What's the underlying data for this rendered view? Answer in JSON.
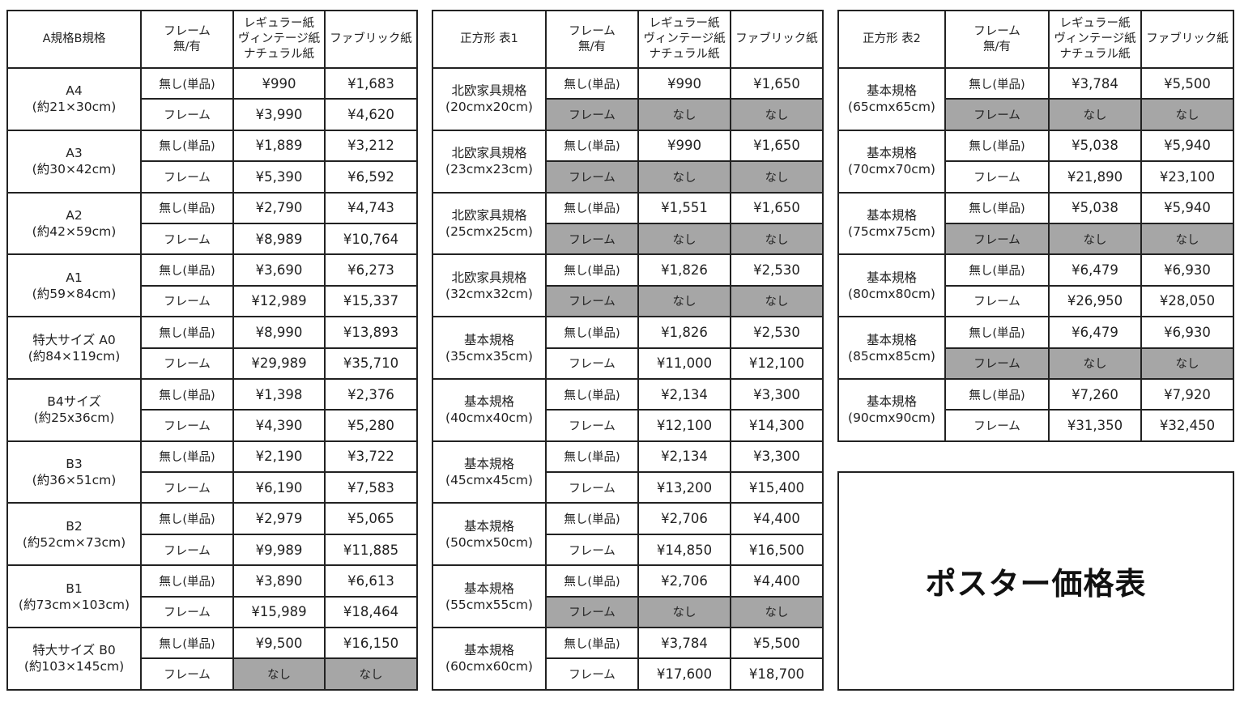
{
  "colors": {
    "border": "#222222",
    "unavailable": "#a6a6a6"
  },
  "title": "ポスター価格表",
  "labels": {
    "no_frame": "無し(単品)",
    "frame": "フレーム",
    "unavailable": "なし"
  },
  "tables": [
    {
      "headers": [
        "A規格B規格",
        [
          "フレーム",
          "無/有"
        ],
        [
          "レギュラー紙",
          "ヴィンテージ紙",
          "ナチュラル紙"
        ],
        "ファブリック紙"
      ],
      "frame_label_grey_when_unavailable": false,
      "groups": [
        {
          "name": "A4",
          "size": "(約21×30cm)",
          "rows": [
            [
              "¥990",
              "¥1,683"
            ],
            [
              "¥3,990",
              "¥4,620"
            ]
          ]
        },
        {
          "name": "A3",
          "size": "(約30×42cm)",
          "rows": [
            [
              "¥1,889",
              "¥3,212"
            ],
            [
              "¥5,390",
              "¥6,592"
            ]
          ]
        },
        {
          "name": "A2",
          "size": "(約42×59cm)",
          "rows": [
            [
              "¥2,790",
              "¥4,743"
            ],
            [
              "¥8,989",
              "¥10,764"
            ]
          ]
        },
        {
          "name": "A1",
          "size": "(約59×84cm)",
          "rows": [
            [
              "¥3,690",
              "¥6,273"
            ],
            [
              "¥12,989",
              "¥15,337"
            ]
          ]
        },
        {
          "name": "特大サイズ A0",
          "size": "(約84×119cm)",
          "rows": [
            [
              "¥8,990",
              "¥13,893"
            ],
            [
              "¥29,989",
              "¥35,710"
            ]
          ]
        },
        {
          "name": "B4サイズ",
          "size": "(約25x36cm)",
          "rows": [
            [
              "¥1,398",
              "¥2,376"
            ],
            [
              "¥4,390",
              "¥5,280"
            ]
          ]
        },
        {
          "name": "B3",
          "size": "(約36×51cm)",
          "rows": [
            [
              "¥2,190",
              "¥3,722"
            ],
            [
              "¥6,190",
              "¥7,583"
            ]
          ]
        },
        {
          "name": "B2",
          "size": "(約52cm×73cm)",
          "rows": [
            [
              "¥2,979",
              "¥5,065"
            ],
            [
              "¥9,989",
              "¥11,885"
            ]
          ]
        },
        {
          "name": "B1",
          "size": "(約73cm×103cm)",
          "rows": [
            [
              "¥3,890",
              "¥6,613"
            ],
            [
              "¥15,989",
              "¥18,464"
            ]
          ]
        },
        {
          "name": "特大サイズ B0",
          "size": "(約103×145cm)",
          "rows": [
            [
              "¥9,500",
              "¥16,150"
            ],
            null
          ]
        }
      ]
    },
    {
      "headers": [
        "正方形 表1",
        [
          "フレーム",
          "無/有"
        ],
        [
          "レギュラー紙",
          "ヴィンテージ紙",
          "ナチュラル紙"
        ],
        "ファブリック紙"
      ],
      "frame_label_grey_when_unavailable": true,
      "groups": [
        {
          "name": "北欧家具規格",
          "size": "(20cmx20cm)",
          "rows": [
            [
              "¥990",
              "¥1,650"
            ],
            null
          ]
        },
        {
          "name": "北欧家具規格",
          "size": "(23cmx23cm)",
          "rows": [
            [
              "¥990",
              "¥1,650"
            ],
            null
          ]
        },
        {
          "name": "北欧家具規格",
          "size": "(25cmx25cm)",
          "rows": [
            [
              "¥1,551",
              "¥1,650"
            ],
            null
          ]
        },
        {
          "name": "北欧家具規格",
          "size": "(32cmx32cm)",
          "rows": [
            [
              "¥1,826",
              "¥2,530"
            ],
            null
          ]
        },
        {
          "name": "基本規格",
          "size": "(35cmx35cm)",
          "rows": [
            [
              "¥1,826",
              "¥2,530"
            ],
            [
              "¥11,000",
              "¥12,100"
            ]
          ]
        },
        {
          "name": "基本規格",
          "size": "(40cmx40cm)",
          "rows": [
            [
              "¥2,134",
              "¥3,300"
            ],
            [
              "¥12,100",
              "¥14,300"
            ]
          ]
        },
        {
          "name": "基本規格",
          "size": "(45cmx45cm)",
          "rows": [
            [
              "¥2,134",
              "¥3,300"
            ],
            [
              "¥13,200",
              "¥15,400"
            ]
          ]
        },
        {
          "name": "基本規格",
          "size": "(50cmx50cm)",
          "rows": [
            [
              "¥2,706",
              "¥4,400"
            ],
            [
              "¥14,850",
              "¥16,500"
            ]
          ]
        },
        {
          "name": "基本規格",
          "size": "(55cmx55cm)",
          "rows": [
            [
              "¥2,706",
              "¥4,400"
            ],
            null
          ]
        },
        {
          "name": "基本規格",
          "size": "(60cmx60cm)",
          "rows": [
            [
              "¥3,784",
              "¥5,500"
            ],
            [
              "¥17,600",
              "¥18,700"
            ]
          ]
        }
      ]
    },
    {
      "headers": [
        "正方形 表2",
        [
          "フレーム",
          "無/有"
        ],
        [
          "レギュラー紙",
          "ヴィンテージ紙",
          "ナチュラル紙"
        ],
        "ファブリック紙"
      ],
      "frame_label_grey_when_unavailable": true,
      "groups": [
        {
          "name": "基本規格",
          "size": "(65cmx65cm)",
          "rows": [
            [
              "¥3,784",
              "¥5,500"
            ],
            null
          ]
        },
        {
          "name": "基本規格",
          "size": "(70cmx70cm)",
          "rows": [
            [
              "¥5,038",
              "¥5,940"
            ],
            [
              "¥21,890",
              "¥23,100"
            ]
          ]
        },
        {
          "name": "基本規格",
          "size": "(75cmx75cm)",
          "rows": [
            [
              "¥5,038",
              "¥5,940"
            ],
            null
          ]
        },
        {
          "name": "基本規格",
          "size": "(80cmx80cm)",
          "rows": [
            [
              "¥6,479",
              "¥6,930"
            ],
            [
              "¥26,950",
              "¥28,050"
            ]
          ]
        },
        {
          "name": "基本規格",
          "size": "(85cmx85cm)",
          "rows": [
            [
              "¥6,479",
              "¥6,930"
            ],
            null
          ]
        },
        {
          "name": "基本規格",
          "size": "(90cmx90cm)",
          "rows": [
            [
              "¥7,260",
              "¥7,920"
            ],
            [
              "¥31,350",
              "¥32,450"
            ]
          ]
        }
      ]
    }
  ]
}
